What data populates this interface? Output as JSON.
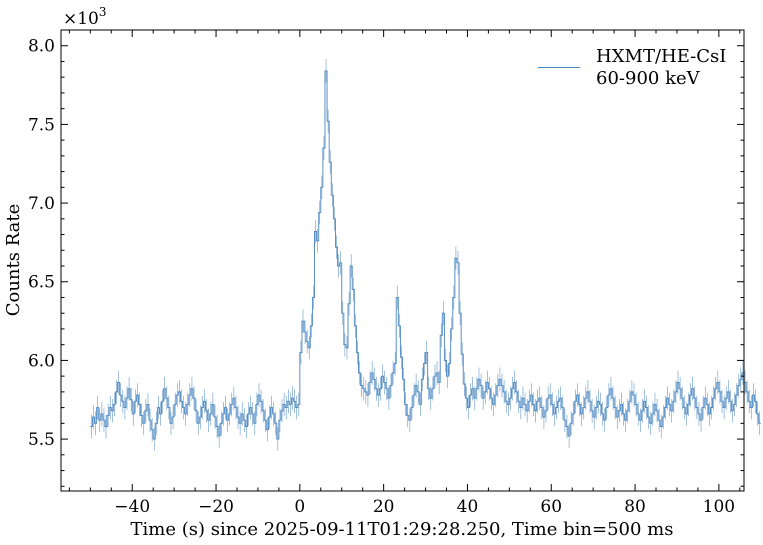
{
  "chart_data": {
    "type": "line",
    "title": "",
    "xlabel": "Time (s) since 2025-09-11T01:29:28.250, Time bin=500 ms",
    "ylabel": "Counts Rate",
    "y_multiplier": "×10",
    "y_multiplier_exp": "3",
    "xlim": [
      -57,
      106
    ],
    "ylim": [
      5.17,
      8.1
    ],
    "x_ticks": [
      -40,
      -20,
      0,
      20,
      40,
      60,
      80,
      100
    ],
    "x_tick_labels": [
      "−40",
      "−20",
      "0",
      "20",
      "40",
      "60",
      "80",
      "100"
    ],
    "y_ticks": [
      5.5,
      6.0,
      6.5,
      7.0,
      7.5,
      8.0
    ],
    "y_tick_labels": [
      "5.5",
      "6.0",
      "6.5",
      "7.0",
      "7.5",
      "8.0"
    ],
    "grid": false,
    "legend_position": "top-right",
    "legend": [
      "HXMT/HE-CsI",
      "60-900 keV"
    ],
    "series": [
      {
        "name": "HXMT/HE-CsI 60-900 keV",
        "color": "#4a86c0",
        "x_start": -50,
        "bin_width": 0.5,
        "error": 0.075,
        "values": [
          5.58,
          5.64,
          5.6,
          5.7,
          5.62,
          5.66,
          5.62,
          5.58,
          5.65,
          5.7,
          5.68,
          5.72,
          5.8,
          5.86,
          5.78,
          5.74,
          5.7,
          5.76,
          5.82,
          5.75,
          5.66,
          5.74,
          5.78,
          5.72,
          5.65,
          5.6,
          5.68,
          5.72,
          5.62,
          5.56,
          5.5,
          5.6,
          5.7,
          5.66,
          5.74,
          5.82,
          5.76,
          5.7,
          5.6,
          5.64,
          5.72,
          5.78,
          5.8,
          5.74,
          5.7,
          5.66,
          5.72,
          5.78,
          5.82,
          5.76,
          5.68,
          5.6,
          5.64,
          5.7,
          5.74,
          5.68,
          5.62,
          5.66,
          5.72,
          5.64,
          5.58,
          5.52,
          5.6,
          5.66,
          5.7,
          5.62,
          5.66,
          5.72,
          5.76,
          5.7,
          5.64,
          5.6,
          5.66,
          5.62,
          5.58,
          5.66,
          5.7,
          5.66,
          5.6,
          5.72,
          5.78,
          5.74,
          5.68,
          5.62,
          5.56,
          5.64,
          5.7,
          5.66,
          5.6,
          5.5,
          5.62,
          5.68,
          5.72,
          5.7,
          5.74,
          5.72,
          5.76,
          5.74,
          5.7,
          5.72,
          6.05,
          6.25,
          6.18,
          6.12,
          6.08,
          6.22,
          6.4,
          6.82,
          6.76,
          6.94,
          7.1,
          7.35,
          7.84,
          7.52,
          7.26,
          7.05,
          6.9,
          6.72,
          6.6,
          6.62,
          6.3,
          6.1,
          6.08,
          6.36,
          6.6,
          6.45,
          6.22,
          6.05,
          5.92,
          5.84,
          5.82,
          5.8,
          5.78,
          5.86,
          5.92,
          5.88,
          5.82,
          5.78,
          5.82,
          5.9,
          5.86,
          5.82,
          5.76,
          5.84,
          5.92,
          5.98,
          6.4,
          6.22,
          6.02,
          5.88,
          5.72,
          5.65,
          5.62,
          5.7,
          5.78,
          5.84,
          5.8,
          5.72,
          5.88,
          5.98,
          6.05,
          5.82,
          5.76,
          5.82,
          5.9,
          5.92,
          5.86,
          6.16,
          6.3,
          6.0,
          5.9,
          5.98,
          6.2,
          6.4,
          6.65,
          6.62,
          6.3,
          6.04,
          5.85,
          5.76,
          5.7,
          5.78,
          5.82,
          5.76,
          5.82,
          5.88,
          5.84,
          5.76,
          5.8,
          5.86,
          5.82,
          5.76,
          5.72,
          5.78,
          5.84,
          5.88,
          5.84,
          5.8,
          5.74,
          5.72,
          5.76,
          5.82,
          5.86,
          5.8,
          5.74,
          5.7,
          5.76,
          5.72,
          5.68,
          5.74,
          5.78,
          5.72,
          5.68,
          5.74,
          5.76,
          5.7,
          5.64,
          5.68,
          5.76,
          5.78,
          5.72,
          5.66,
          5.7,
          5.74,
          5.76,
          5.7,
          5.62,
          5.58,
          5.52,
          5.6,
          5.66,
          5.74,
          5.78,
          5.72,
          5.66,
          5.7,
          5.76,
          5.8,
          5.74,
          5.68,
          5.64,
          5.7,
          5.74,
          5.72,
          5.66,
          5.62,
          5.7,
          5.78,
          5.82,
          5.76,
          5.7,
          5.64,
          5.68,
          5.72,
          5.66,
          5.62,
          5.68,
          5.74,
          5.8,
          5.78,
          5.72,
          5.66,
          5.62,
          5.68,
          5.74,
          5.7,
          5.64,
          5.6,
          5.66,
          5.72,
          5.68,
          5.62,
          5.58,
          5.64,
          5.7,
          5.76,
          5.72,
          5.68,
          5.74,
          5.8,
          5.86,
          5.82,
          5.76,
          5.7,
          5.66,
          5.72,
          5.78,
          5.82,
          5.76,
          5.7,
          5.66,
          5.62,
          5.7,
          5.76,
          5.72,
          5.66,
          5.7,
          5.76,
          5.82,
          5.86,
          5.8,
          5.74,
          5.7,
          5.76,
          5.8,
          5.74,
          5.68,
          5.72,
          5.78,
          5.84,
          5.88,
          5.92,
          5.86,
          5.8,
          5.74,
          5.7,
          5.78,
          5.74,
          5.66,
          5.6
        ]
      }
    ]
  }
}
